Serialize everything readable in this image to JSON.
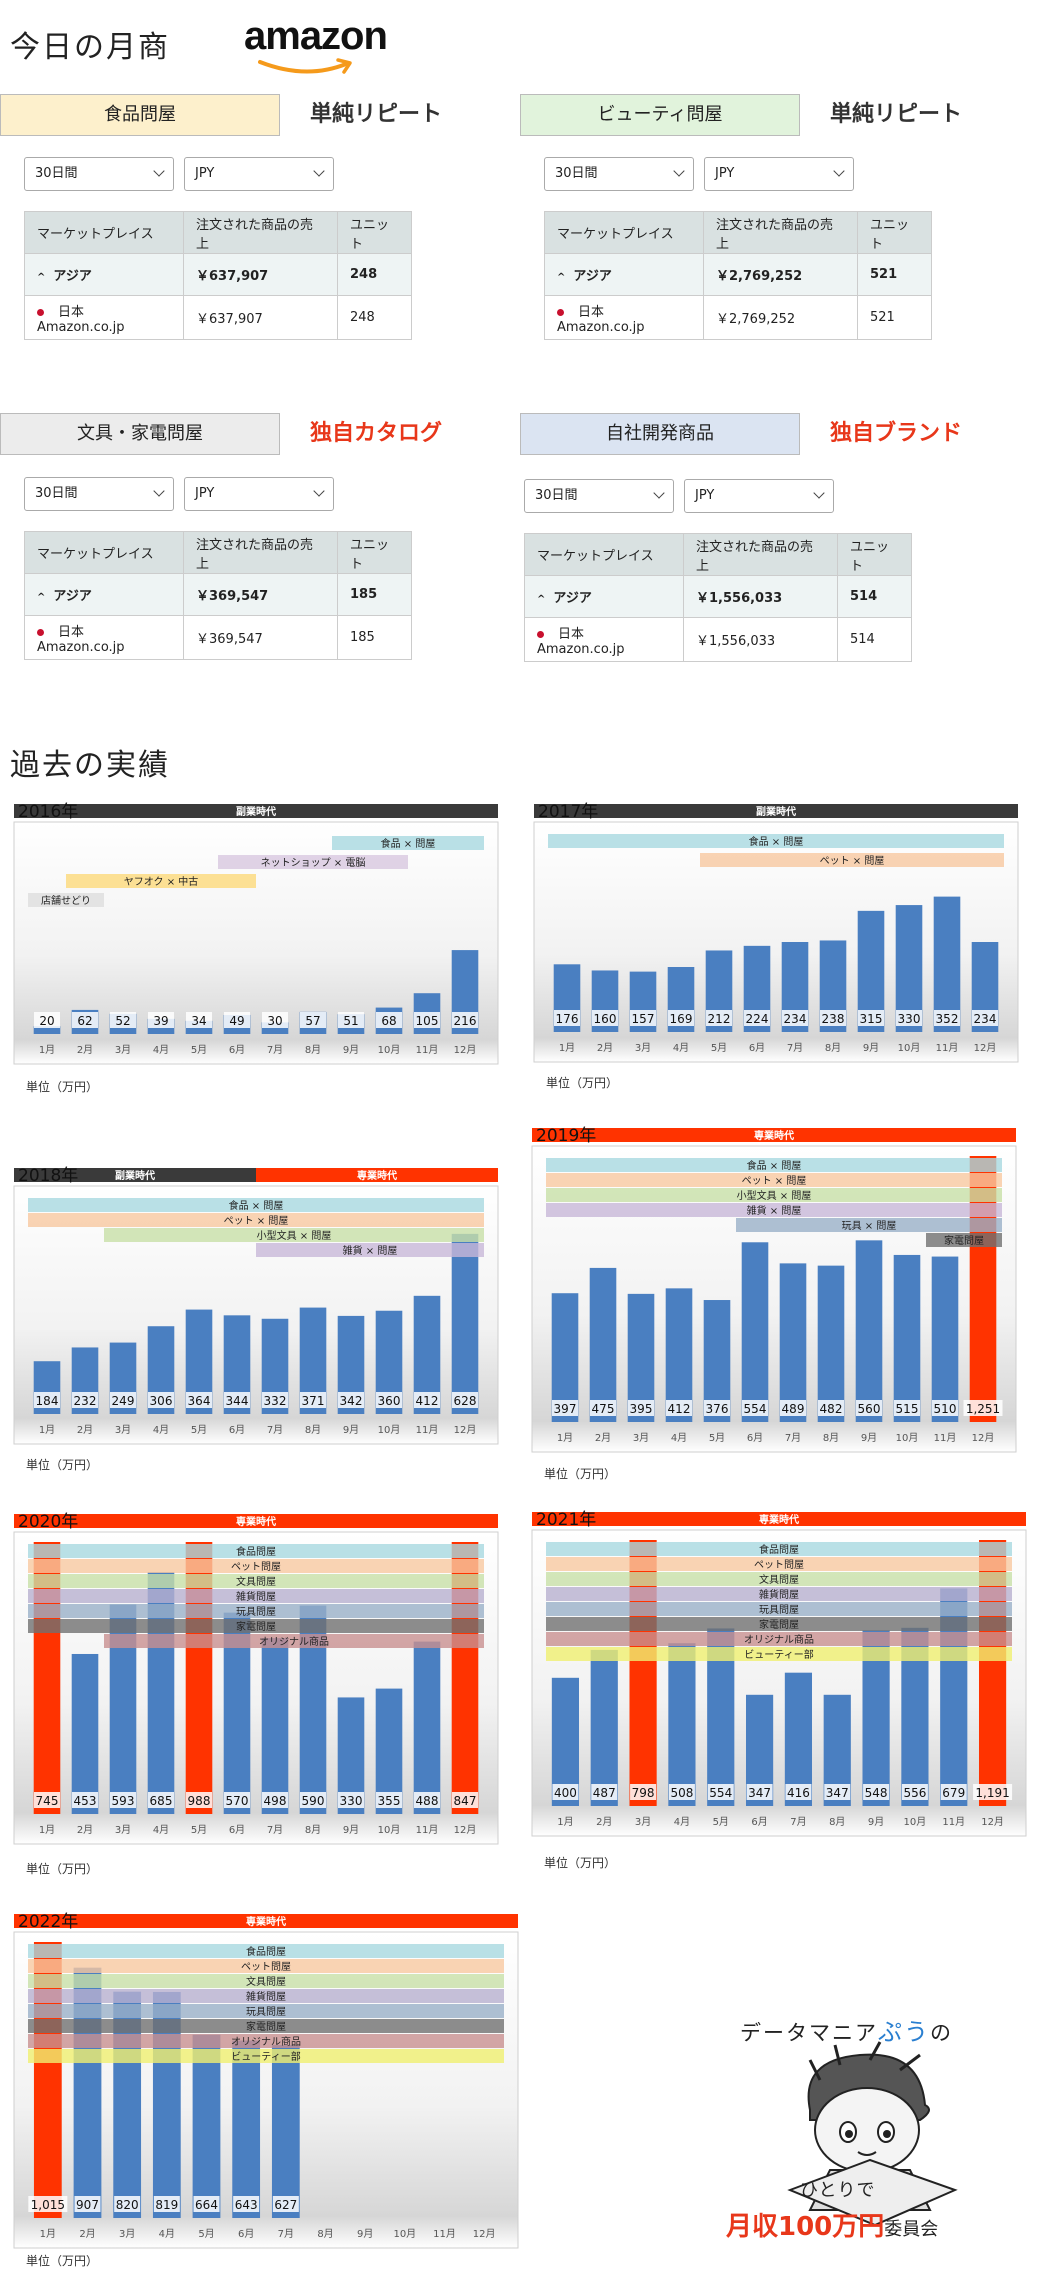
{
  "header": {
    "title": "今日の月商",
    "logo_text": "amazon"
  },
  "sales_panels": [
    {
      "wholesaler": "食品問屋",
      "wholesaler_color": "#fdf0cc",
      "tag": "単純リピート",
      "tag_color": "#333333",
      "period": "30日間",
      "currency": "JPY",
      "headers": [
        "マーケットプレイス",
        "注文された商品の売上",
        "ユニット"
      ],
      "asia": {
        "name": "アジア",
        "sales": "￥637,907",
        "units": "248"
      },
      "japan": {
        "name": "日本 Amazon.co.jp",
        "sales": "￥637,907",
        "units": "248"
      }
    },
    {
      "wholesaler": "ビューティ問屋",
      "wholesaler_color": "#e1f3dc",
      "tag": "単純リピート",
      "tag_color": "#333333",
      "period": "30日間",
      "currency": "JPY",
      "headers": [
        "マーケットプレイス",
        "注文された商品の売上",
        "ユニット"
      ],
      "asia": {
        "name": "アジア",
        "sales": "￥2,769,252",
        "units": "521"
      },
      "japan": {
        "name": "日本 Amazon.co.jp",
        "sales": "￥2,769,252",
        "units": "521"
      }
    },
    {
      "wholesaler": "文具・家電問屋",
      "wholesaler_color": "#ececec",
      "tag": "独自カタログ",
      "tag_color": "#e8371a",
      "period": "30日間",
      "currency": "JPY",
      "headers": [
        "マーケットプレイス",
        "注文された商品の売上",
        "ユニット"
      ],
      "asia": {
        "name": "アジア",
        "sales": "￥369,547",
        "units": "185"
      },
      "japan": {
        "name": "日本 Amazon.co.jp",
        "sales": "￥369,547",
        "units": "185"
      }
    },
    {
      "wholesaler": "自社開発商品",
      "wholesaler_color": "#dbe4f2",
      "tag": "独自ブランド",
      "tag_color": "#e8371a",
      "period": "30日間",
      "currency": "JPY",
      "headers": [
        "マーケットプレイス",
        "注文された商品の売上",
        "ユニット"
      ],
      "asia": {
        "name": "アジア",
        "sales": "￥1,556,033",
        "units": "514"
      },
      "japan": {
        "name": "日本 Amazon.co.jp",
        "sales": "￥1,556,033",
        "units": "514"
      }
    }
  ],
  "history": {
    "title": "過去の実績",
    "unit_label": "単位（万円）",
    "colors": {
      "bar": "#4a7fc1",
      "bar_highlight": "#ff3300",
      "side_job_banner": "#3a3a3a",
      "full_time_banner": "#ff3300"
    },
    "legend_colors": {
      "食品 × 問屋": "#a8d8e0",
      "食品問屋": "#a8d8e0",
      "ネットショップ × 電脳": "#d8c8e0",
      "ヤフオク × 中古": "#fcd97a",
      "店舗せどり": "#dddddd",
      "ペット × 問屋": "#f8c8a0",
      "ペット問屋": "#f8c8a0",
      "小型文具 × 問屋": "#c8e0a8",
      "文具問屋": "#c8e0a8",
      "雑貨 × 問屋": "#c8b8d8",
      "雑貨問屋": "#b8b0d0",
      "玩具 × 問屋": "#9ab0c8",
      "玩具問屋": "#9ab0c8",
      "家電問屋": "#707070",
      "オリジナル商品": "#c89090",
      "ビューティー部": "#f0f070"
    }
  },
  "chart_data": [
    {
      "type": "bar",
      "year_label": "2016年",
      "eras": [
        {
          "label": "副業時代",
          "type": "side"
        }
      ],
      "categories": [
        "1月",
        "2月",
        "3月",
        "4月",
        "5月",
        "6月",
        "7月",
        "8月",
        "9月",
        "10月",
        "11月",
        "12月"
      ],
      "values": [
        20,
        62,
        52,
        39,
        34,
        49,
        30,
        57,
        51,
        68,
        105,
        216
      ],
      "highlight": [],
      "ymax": 520,
      "legend_style": "cascade",
      "legend": [
        {
          "label": "食品 × 問屋",
          "start": 8,
          "end": 11
        },
        {
          "label": "ネットショップ × 電脳",
          "start": 5,
          "end": 9
        },
        {
          "label": "ヤフオク × 中古",
          "start": 1,
          "end": 5
        },
        {
          "label": "店舗せどり",
          "start": 0,
          "end": 1
        }
      ]
    },
    {
      "type": "bar",
      "year_label": "2017年",
      "eras": [
        {
          "label": "副業時代",
          "type": "side"
        }
      ],
      "categories": [
        "1月",
        "2月",
        "3月",
        "4月",
        "5月",
        "6月",
        "7月",
        "8月",
        "9月",
        "10月",
        "11月",
        "12月"
      ],
      "values": [
        176,
        160,
        157,
        169,
        212,
        224,
        234,
        238,
        315,
        330,
        352,
        234
      ],
      "highlight": [],
      "ymax": 520,
      "legend_style": "cascade",
      "legend": [
        {
          "label": "食品 × 問屋",
          "start": 0,
          "end": 11
        },
        {
          "label": "ペット × 問屋",
          "start": 4,
          "end": 11
        }
      ]
    },
    {
      "type": "bar",
      "year_label": "2018年",
      "eras": [
        {
          "label": "副業時代",
          "type": "side",
          "span": 6
        },
        {
          "label": "専業時代",
          "type": "full",
          "span": 6
        }
      ],
      "categories": [
        "1月",
        "2月",
        "3月",
        "4月",
        "5月",
        "6月",
        "7月",
        "8月",
        "9月",
        "10月",
        "11月",
        "12月"
      ],
      "values": [
        184,
        232,
        249,
        306,
        364,
        344,
        332,
        371,
        342,
        360,
        412,
        628
      ],
      "highlight": [],
      "ymax": 760,
      "legend_style": "cascade",
      "legend": [
        {
          "label": "食品 × 問屋",
          "start": 0,
          "end": 11
        },
        {
          "label": "ペット × 問屋",
          "start": 0,
          "end": 11
        },
        {
          "label": "小型文具 × 問屋",
          "start": 2,
          "end": 11
        },
        {
          "label": "雑貨 × 問屋",
          "start": 6,
          "end": 11
        }
      ]
    },
    {
      "type": "bar",
      "year_label": "2019年",
      "eras": [
        {
          "label": "専業時代",
          "type": "full"
        }
      ],
      "categories": [
        "1月",
        "2月",
        "3月",
        "4月",
        "5月",
        "6月",
        "7月",
        "8月",
        "9月",
        "10月",
        "11月",
        "12月"
      ],
      "values": [
        397,
        475,
        395,
        412,
        376,
        554,
        489,
        482,
        560,
        515,
        510,
        1251
      ],
      "highlight": [
        11
      ],
      "ymax": 820,
      "legend_style": "cascade",
      "legend": [
        {
          "label": "食品 × 問屋",
          "start": 0,
          "end": 11
        },
        {
          "label": "ペット × 問屋",
          "start": 0,
          "end": 11
        },
        {
          "label": "小型文具 × 問屋",
          "start": 0,
          "end": 11
        },
        {
          "label": "雑貨 × 問屋",
          "start": 0,
          "end": 11
        },
        {
          "label": "玩具 × 問屋",
          "start": 5,
          "end": 11
        },
        {
          "label": "家電問屋",
          "start": 10,
          "end": 11
        }
      ]
    },
    {
      "type": "bar",
      "year_label": "2020年",
      "eras": [
        {
          "label": "専業時代",
          "type": "full"
        }
      ],
      "categories": [
        "1月",
        "2月",
        "3月",
        "4月",
        "5月",
        "6月",
        "7月",
        "8月",
        "9月",
        "10月",
        "11月",
        "12月"
      ],
      "values": [
        745,
        453,
        593,
        685,
        988,
        570,
        498,
        590,
        330,
        355,
        488,
        847
      ],
      "highlight": [
        0,
        4,
        11
      ],
      "ymax": 770,
      "legend_style": "stacked",
      "legend": [
        {
          "label": "食品問屋",
          "start": 0,
          "end": 11
        },
        {
          "label": "ペット問屋",
          "start": 0,
          "end": 11
        },
        {
          "label": "文具問屋",
          "start": 0,
          "end": 11
        },
        {
          "label": "雑貨問屋",
          "start": 0,
          "end": 11
        },
        {
          "label": "玩具問屋",
          "start": 0,
          "end": 11
        },
        {
          "label": "家電問屋",
          "start": 0,
          "end": 11
        },
        {
          "label": "オリジナル商品",
          "start": 2,
          "end": 11
        }
      ]
    },
    {
      "type": "bar",
      "year_label": "2021年",
      "eras": [
        {
          "label": "専業時代",
          "type": "full"
        }
      ],
      "categories": [
        "1月",
        "2月",
        "3月",
        "4月",
        "5月",
        "6月",
        "7月",
        "8月",
        "9月",
        "10月",
        "11月",
        "12月"
      ],
      "values": [
        400,
        487,
        798,
        508,
        554,
        347,
        416,
        347,
        548,
        556,
        679,
        1191
      ],
      "highlight": [
        2,
        11
      ],
      "ymax": 830,
      "legend_style": "stacked",
      "legend": [
        {
          "label": "食品問屋",
          "start": 0,
          "end": 11
        },
        {
          "label": "ペット問屋",
          "start": 0,
          "end": 11
        },
        {
          "label": "文具問屋",
          "start": 0,
          "end": 11
        },
        {
          "label": "雑貨問屋",
          "start": 0,
          "end": 11
        },
        {
          "label": "玩具問屋",
          "start": 0,
          "end": 11
        },
        {
          "label": "家電問屋",
          "start": 0,
          "end": 11
        },
        {
          "label": "オリジナル商品",
          "start": 0,
          "end": 11
        },
        {
          "label": "ビューティー部",
          "start": 0,
          "end": 11
        }
      ]
    },
    {
      "type": "bar",
      "year_label": "2022年",
      "eras": [
        {
          "label": "専業時代",
          "type": "full"
        }
      ],
      "categories": [
        "1月",
        "2月",
        "3月",
        "4月",
        "5月",
        "6月",
        "7月",
        "8月",
        "9月",
        "10月",
        "11月",
        "12月"
      ],
      "values": [
        1015,
        907,
        820,
        819,
        664,
        643,
        627,
        null,
        null,
        null,
        null,
        null
      ],
      "highlight": [
        0
      ],
      "ymax": 1000,
      "legend_style": "stacked",
      "legend": [
        {
          "label": "食品問屋",
          "start": 0,
          "end": 11
        },
        {
          "label": "ペット問屋",
          "start": 0,
          "end": 11
        },
        {
          "label": "文具問屋",
          "start": 0,
          "end": 11
        },
        {
          "label": "雑貨問屋",
          "start": 0,
          "end": 11
        },
        {
          "label": "玩具問屋",
          "start": 0,
          "end": 11
        },
        {
          "label": "家電問屋",
          "start": 0,
          "end": 11
        },
        {
          "label": "オリジナル商品",
          "start": 0,
          "end": 11
        },
        {
          "label": "ビューティー部",
          "start": 0,
          "end": 11
        }
      ]
    }
  ],
  "mascot": {
    "line1_a": "データマニア",
    "line1_b": "ぷう",
    "line1_c": "の",
    "hitoride": "ひとりで",
    "big": "月収100万円",
    "suffix": "委員会",
    "accent_blue": "#2a7fd0",
    "accent_red": "#e8371a"
  }
}
